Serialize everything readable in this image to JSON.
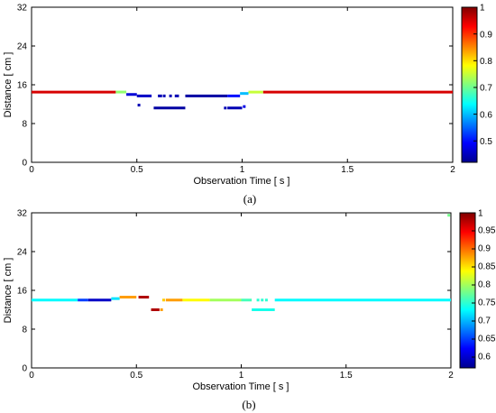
{
  "chart_data": [
    {
      "type": "scatter",
      "caption": "(a)",
      "xlabel": "Observation Time [ s ]",
      "ylabel": "Distance [ cm ]",
      "xlim": [
        0,
        2
      ],
      "ylim": [
        0,
        32
      ],
      "xticks": [
        "0",
        "0.5",
        "1",
        "1.5",
        "2"
      ],
      "yticks": [
        "0",
        "8",
        "16",
        "24",
        "32"
      ],
      "grid": false,
      "colormap": "jet",
      "clim": [
        0.42,
        1.0
      ],
      "colorbar_ticks": [
        "0.5",
        "0.6",
        "0.7",
        "0.8",
        "0.9",
        "1"
      ],
      "series": [
        {
          "segments": [
            {
              "x0": 0.0,
              "x1": 0.4,
              "y": 14.5,
              "c": 0.95
            },
            {
              "x0": 0.4,
              "x1": 0.45,
              "y": 14.5,
              "c": 0.72
            },
            {
              "x0": 0.45,
              "x1": 0.5,
              "y": 14.0,
              "c": 0.47
            },
            {
              "x0": 0.5,
              "x1": 0.57,
              "y": 13.7,
              "c": 0.46
            },
            {
              "x0": 0.6,
              "x1": 0.62,
              "y": 13.7,
              "c": 0.45
            },
            {
              "x0": 0.68,
              "x1": 0.7,
              "y": 13.7,
              "c": 0.45
            },
            {
              "x0": 0.73,
              "x1": 0.93,
              "y": 13.7,
              "c": 0.44
            },
            {
              "x0": 0.93,
              "x1": 0.99,
              "y": 13.7,
              "c": 0.5
            },
            {
              "x0": 0.99,
              "x1": 1.03,
              "y": 14.2,
              "c": 0.6
            },
            {
              "x0": 1.03,
              "x1": 1.1,
              "y": 14.5,
              "c": 0.75
            },
            {
              "x0": 1.1,
              "x1": 2.0,
              "y": 14.5,
              "c": 0.95
            },
            {
              "x0": 0.58,
              "x1": 0.73,
              "y": 11.2,
              "c": 0.44
            },
            {
              "x0": 0.93,
              "x1": 1.0,
              "y": 11.2,
              "c": 0.45
            }
          ]
        },
        {
          "points": [
            {
              "x": 0.51,
              "y": 11.8,
              "c": 0.45
            },
            {
              "x": 0.63,
              "y": 13.7,
              "c": 0.45
            },
            {
              "x": 0.66,
              "y": 13.7,
              "c": 0.45
            },
            {
              "x": 0.92,
              "y": 11.2,
              "c": 0.45
            },
            {
              "x": 1.01,
              "y": 11.5,
              "c": 0.48
            }
          ]
        }
      ]
    },
    {
      "type": "scatter",
      "caption": "(b)",
      "xlabel": "Observation Time [ s ]",
      "ylabel": "Distance [ cm ]",
      "xlim": [
        0,
        2
      ],
      "ylim": [
        0,
        32
      ],
      "xticks": [
        "0",
        "0.5",
        "1",
        "1.5",
        "2"
      ],
      "yticks": [
        "0",
        "8",
        "16",
        "24",
        "32"
      ],
      "grid": false,
      "colormap": "jet",
      "clim": [
        0.57,
        1.0
      ],
      "colorbar_ticks": [
        "0.6",
        "0.65",
        "0.7",
        "0.75",
        "0.8",
        "0.85",
        "0.9",
        "0.95",
        "1"
      ],
      "series": [
        {
          "segments": [
            {
              "x0": 0.0,
              "x1": 0.22,
              "y": 14.0,
              "c": 0.73
            },
            {
              "x0": 0.22,
              "x1": 0.27,
              "y": 14.0,
              "c": 0.65
            },
            {
              "x0": 0.27,
              "x1": 0.38,
              "y": 14.0,
              "c": 0.6
            },
            {
              "x0": 0.38,
              "x1": 0.42,
              "y": 14.3,
              "c": 0.72
            },
            {
              "x0": 0.42,
              "x1": 0.5,
              "y": 14.6,
              "c": 0.88
            },
            {
              "x0": 0.51,
              "x1": 0.56,
              "y": 14.6,
              "c": 0.98
            },
            {
              "x0": 0.57,
              "x1": 0.61,
              "y": 12.0,
              "c": 0.98
            },
            {
              "x0": 0.64,
              "x1": 0.72,
              "y": 14.0,
              "c": 0.88
            },
            {
              "x0": 0.72,
              "x1": 0.85,
              "y": 14.0,
              "c": 0.84
            },
            {
              "x0": 0.85,
              "x1": 1.0,
              "y": 14.0,
              "c": 0.8
            },
            {
              "x0": 1.0,
              "x1": 1.05,
              "y": 14.0,
              "c": 0.76
            },
            {
              "x0": 1.16,
              "x1": 2.0,
              "y": 14.0,
              "c": 0.73
            },
            {
              "x0": 1.05,
              "x1": 1.16,
              "y": 12.0,
              "c": 0.74
            }
          ]
        },
        {
          "points": [
            {
              "x": 0.62,
              "y": 12.0,
              "c": 0.88
            },
            {
              "x": 0.63,
              "y": 14.0,
              "c": 0.86
            },
            {
              "x": 1.08,
              "y": 14.0,
              "c": 0.75
            },
            {
              "x": 1.1,
              "y": 14.0,
              "c": 0.75
            },
            {
              "x": 1.12,
              "y": 14.0,
              "c": 0.75
            },
            {
              "x": 1.99,
              "y": 31.5,
              "c": 0.78
            }
          ]
        }
      ]
    }
  ]
}
